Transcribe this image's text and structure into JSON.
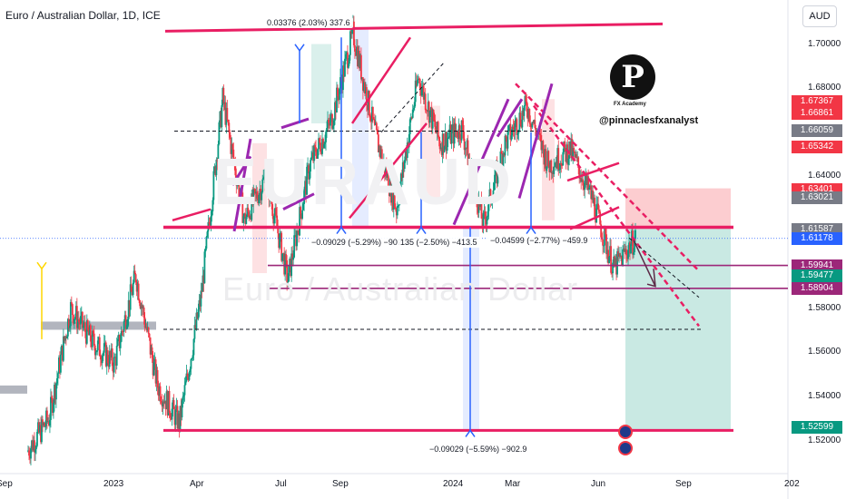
{
  "header": {
    "title": "Euro / Australian Dollar, 1D, ICE",
    "currency": "AUD"
  },
  "watermark": {
    "line1": "EURAUD",
    "line2": "Euro / Australian Dollar"
  },
  "branding": {
    "logo_letter": "P",
    "logo_sub": "FX Academy",
    "handle": "@pinnaclesfxanalyst"
  },
  "chart_data": {
    "type": "line",
    "ylim": [
      1.505,
      1.72
    ],
    "y_ticks": [
      {
        "label": "1.70000",
        "value": 1.7
      },
      {
        "label": "1.68000",
        "value": 1.68
      },
      {
        "label": "1.64000",
        "value": 1.64
      },
      {
        "label": "1.58000",
        "value": 1.58
      },
      {
        "label": "1.56000",
        "value": 1.56
      },
      {
        "label": "1.54000",
        "value": 1.54
      },
      {
        "label": "1.52000",
        "value": 1.52
      }
    ],
    "x_ticks": [
      "Sep",
      "2023",
      "Apr",
      "Jul",
      "Sep",
      "2024",
      "Mar",
      "Jun",
      "Sep",
      "202"
    ],
    "price_tags": [
      {
        "label": "1.67367",
        "value": 1.67367,
        "color": "#f23645"
      },
      {
        "label": "1.66861",
        "value": 1.66861,
        "color": "#f23645"
      },
      {
        "label": "1.66059",
        "value": 1.66059,
        "color": "#787b86"
      },
      {
        "label": "1.65342",
        "value": 1.65342,
        "color": "#f23645"
      },
      {
        "label": "1.63401",
        "value": 1.63401,
        "color": "#f23645"
      },
      {
        "label": "1.63021",
        "value": 1.63021,
        "color": "#787b86"
      },
      {
        "label": "1.61587",
        "value": 1.61587,
        "color": "#787b86"
      },
      {
        "label": "1.61178",
        "value": 1.61178,
        "color": "#2962ff"
      },
      {
        "label": "1.59941",
        "value": 1.59941,
        "color": "#9c2779"
      },
      {
        "label": "1.59477",
        "value": 1.59477,
        "color": "#089981"
      },
      {
        "label": "1.58904",
        "value": 1.58904,
        "color": "#9c2779"
      },
      {
        "label": "1.52599",
        "value": 1.52599,
        "color": "#089981"
      }
    ],
    "series": [
      {
        "values": [
          1.515,
          1.53,
          1.58,
          1.565,
          1.555,
          1.595,
          1.545,
          1.528,
          1.585,
          1.675,
          1.62,
          1.64,
          1.593,
          1.645,
          1.665,
          1.705,
          1.66,
          1.625,
          1.685,
          1.655,
          1.662,
          1.618,
          1.655,
          1.672,
          1.645,
          1.652,
          1.63,
          1.598,
          1.612
        ]
      }
    ],
    "levels": [
      1.7075,
      1.6168,
      1.5995,
      1.5891,
      1.5246
    ],
    "position": {
      "entry": 1.6162,
      "stop": 1.6345,
      "target": 1.5245
    },
    "annotations": [
      "0.03376 (2.03%) 337.6",
      "−0.09029 (−5.29%) −902.9",
      "135 (−2.50%) −413.5",
      "−0.04599 (−2.77%) −459.9",
      "−0.09029 (−5.59%) −902.9"
    ]
  }
}
